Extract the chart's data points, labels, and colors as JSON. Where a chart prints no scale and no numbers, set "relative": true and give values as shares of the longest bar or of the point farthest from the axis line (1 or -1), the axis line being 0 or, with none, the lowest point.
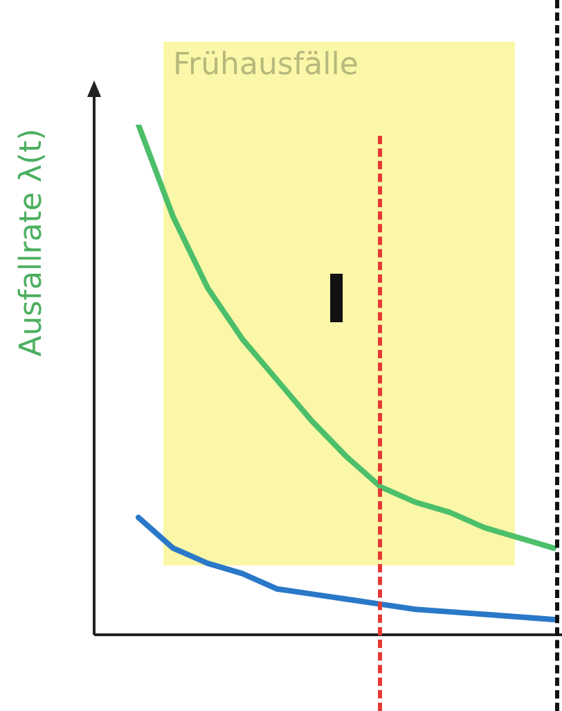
{
  "chart_data": {
    "type": "line",
    "relative": true,
    "ylabel": "Ausfallrate λ(t)",
    "legend": false,
    "marker": "none",
    "line_style": "solid",
    "categories": [
      null,
      null,
      null,
      null,
      null,
      null,
      null,
      null,
      null,
      null,
      null,
      null,
      null
    ],
    "series": [
      {
        "color": "#4cbf6a",
        "values": [
          1.0,
          0.82,
          0.68,
          0.58,
          0.5,
          0.42,
          0.35,
          0.29,
          0.26,
          0.24,
          0.21,
          0.19,
          0.17
        ]
      },
      {
        "color": "#2a78c8",
        "values": [
          0.23,
          0.17,
          0.14,
          0.12,
          0.09,
          0.08,
          0.07,
          0.06,
          0.05,
          0.045,
          0.04,
          0.035,
          0.03
        ]
      }
    ],
    "annotations": [
      "Frühausfälle",
      "I"
    ]
  }
}
